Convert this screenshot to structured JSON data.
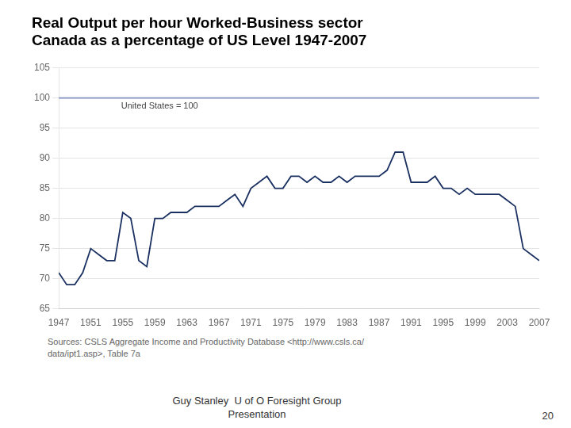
{
  "chart_data": {
    "type": "line",
    "title": [
      "Real Output per hour Worked-Business sector",
      "Canada as a percentage of US Level 1947-2007"
    ],
    "x": [
      1947,
      1948,
      1949,
      1950,
      1951,
      1952,
      1953,
      1954,
      1955,
      1956,
      1957,
      1958,
      1959,
      1960,
      1961,
      1962,
      1963,
      1964,
      1965,
      1966,
      1967,
      1968,
      1969,
      1970,
      1971,
      1972,
      1973,
      1974,
      1975,
      1976,
      1977,
      1978,
      1979,
      1980,
      1981,
      1982,
      1983,
      1984,
      1985,
      1986,
      1987,
      1988,
      1989,
      1990,
      1991,
      1992,
      1993,
      1994,
      1995,
      1996,
      1997,
      1998,
      1999,
      2000,
      2001,
      2002,
      2003,
      2004,
      2005,
      2006,
      2007
    ],
    "values": [
      71,
      69,
      69,
      71,
      75,
      74,
      73,
      73,
      81,
      80,
      73,
      72,
      80,
      80,
      81,
      81,
      81,
      82,
      82,
      82,
      82,
      83,
      84,
      82,
      85,
      86,
      87,
      85,
      85,
      87,
      87,
      86,
      87,
      86,
      86,
      87,
      86,
      87,
      87,
      87,
      87,
      88,
      91,
      91,
      86,
      86,
      86,
      87,
      85,
      85,
      84,
      85,
      84,
      84,
      84,
      84,
      83,
      82,
      75,
      74,
      73
    ],
    "color": "#1A3060",
    "hlines": [
      {
        "value": 100,
        "label": "United States = 100",
        "color": "#8090C0"
      }
    ],
    "xlim": [
      1947,
      2007
    ],
    "xticks": [
      1947,
      1951,
      1955,
      1959,
      1963,
      1967,
      1971,
      1975,
      1979,
      1983,
      1987,
      1991,
      1995,
      1999,
      2003,
      2007
    ],
    "ylim": [
      65,
      105
    ],
    "yticks": [
      65,
      70,
      75,
      80,
      85,
      90,
      95,
      100,
      105
    ],
    "grid": "y",
    "source": "Sources: CSLS Aggregate Income and Productivity Database <http://www.csls.ca/\ndata/ipt1.asp>, Table 7a",
    "footer": [
      "Guy Stanley  U of O Foresight Group\nPresentation",
      "20"
    ]
  }
}
